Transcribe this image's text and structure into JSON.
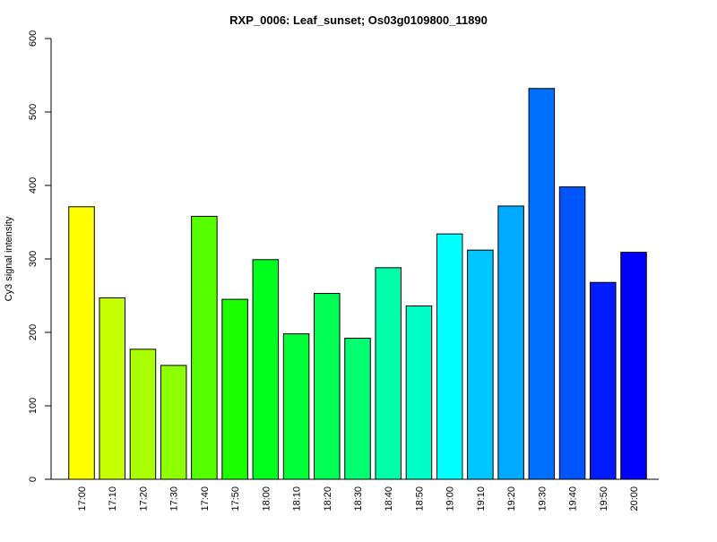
{
  "chart_data": {
    "type": "bar",
    "title": "RXP_0006: Leaf_sunset; Os03g0109800_11890",
    "xlabel": "",
    "ylabel": "Cy3 signal intensity",
    "ylim": [
      0,
      600
    ],
    "yticks": [
      0,
      100,
      200,
      300,
      400,
      500,
      600
    ],
    "grid": false,
    "categories": [
      "17:00",
      "17:10",
      "17:20",
      "17:30",
      "17:40",
      "17:50",
      "18:00",
      "18:10",
      "18:20",
      "18:30",
      "18:40",
      "18:50",
      "19:00",
      "19:10",
      "19:20",
      "19:30",
      "19:40",
      "19:50",
      "20:00"
    ],
    "values": [
      371,
      247,
      177,
      155,
      358,
      245,
      299,
      198,
      253,
      192,
      288,
      236,
      334,
      312,
      372,
      532,
      398,
      268,
      309
    ],
    "colors": [
      "#FFFF00",
      "#C6FF00",
      "#AAFF00",
      "#8EFF00",
      "#55FF00",
      "#1CFF00",
      "#00FF1C",
      "#00FF38",
      "#00FF55",
      "#00FF71",
      "#00FFAA",
      "#00FFC6",
      "#00FFFF",
      "#00C6FF",
      "#00AAFF",
      "#0071FF",
      "#0055FF",
      "#001CFF",
      "#0000FF"
    ]
  }
}
